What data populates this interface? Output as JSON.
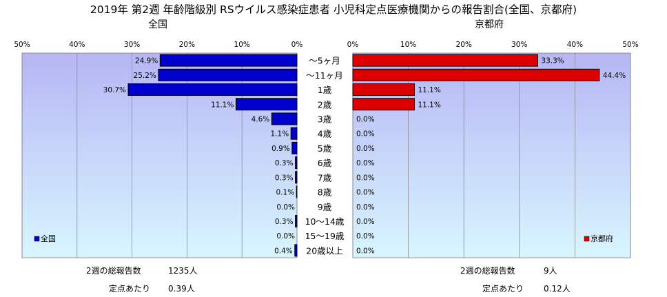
{
  "chart_data": {
    "type": "bar",
    "title": "2019年 第2週 年齢階級別 RSウイルス感染症患者 小児科定点医療機関からの報告割合(全国、京都府)",
    "categories": [
      "～5ヶ月",
      "～11ヶ月",
      "1歳",
      "2歳",
      "3歳",
      "4歳",
      "5歳",
      "6歳",
      "7歳",
      "8歳",
      "9歳",
      "10～14歳",
      "15～19歳",
      "20歳以上"
    ],
    "xlim": [
      0,
      50
    ],
    "tick_labels": [
      "0%",
      "10%",
      "20%",
      "30%",
      "40%",
      "50%"
    ],
    "grid": true,
    "panels": [
      {
        "name": "全国",
        "title": "全国",
        "legend": "全国",
        "legend_position": "bottom-left",
        "direction": "left",
        "color": "#0000cc",
        "values": [
          24.9,
          25.2,
          30.7,
          11.1,
          4.6,
          1.1,
          0.9,
          0.3,
          0.3,
          0.1,
          0.0,
          0.3,
          0.0,
          0.4
        ],
        "labels": [
          "24.9%",
          "25.2%",
          "30.7%",
          "11.1%",
          "4.6%",
          "1.1%",
          "0.9%",
          "0.3%",
          "0.3%",
          "0.1%",
          "0.0%",
          "0.3%",
          "0.0%",
          "0.4%"
        ]
      },
      {
        "name": "京都府",
        "title": "京都府",
        "legend": "京都府",
        "legend_position": "bottom-right",
        "direction": "right",
        "color": "#dd0000",
        "values": [
          33.3,
          44.4,
          11.1,
          11.1,
          0.0,
          0.0,
          0.0,
          0.0,
          0.0,
          0.0,
          0.0,
          0.0,
          0.0,
          0.0
        ],
        "labels": [
          "33.3%",
          "44.4%",
          "11.1%",
          "11.1%",
          "0.0%",
          "0.0%",
          "0.0%",
          "0.0%",
          "0.0%",
          "0.0%",
          "0.0%",
          "0.0%",
          "0.0%",
          "0.0%"
        ]
      }
    ]
  },
  "footer": {
    "left": {
      "total_label": "2週の総報告数",
      "total_value": "1235人",
      "per_label": "定点あたり",
      "per_value": "0.39人"
    },
    "right": {
      "total_label": "2週の総報告数",
      "total_value": "9人",
      "per_label": "定点あたり",
      "per_value": "0.12人"
    }
  },
  "colors": {
    "plot_top": "#b6b6f4",
    "plot_bottom": "#d8f6ff",
    "grid": "#8c8c8c"
  }
}
